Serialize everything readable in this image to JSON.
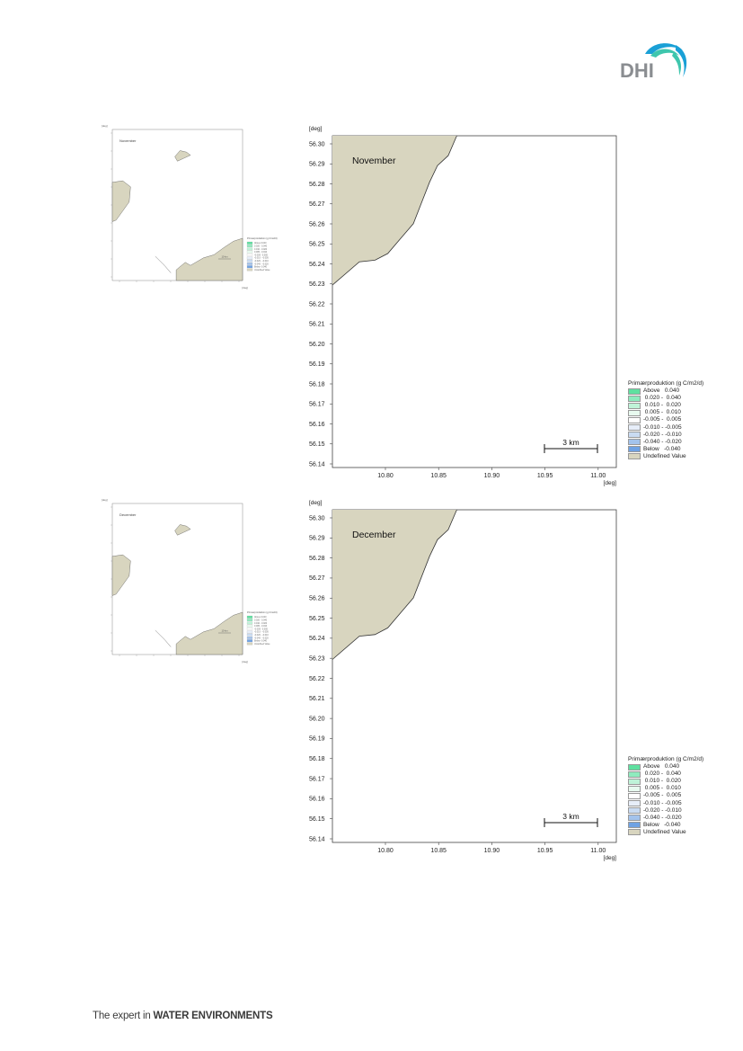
{
  "logo": {
    "text": "DHI"
  },
  "footer": {
    "prefix": "The expert in ",
    "bold": "WATER ENVIRONMENTS"
  },
  "units": {
    "deg": "[deg]"
  },
  "scale_bar_label": "3 km",
  "thumb_scale_bar_label": "10 km",
  "legend": {
    "title": "Primærproduktion (g C/m2/d)",
    "entries": [
      {
        "label": "Above   0.040",
        "color": "#5fe0a0"
      },
      {
        "label": " 0.020 -  0.040",
        "color": "#8eebbe"
      },
      {
        "label": " 0.010 -  0.020",
        "color": "#bff3d8"
      },
      {
        "label": " 0.005 -  0.010",
        "color": "#e8faef"
      },
      {
        "label": "-0.005 -  0.005",
        "color": "#ffffff"
      },
      {
        "label": "-0.010 - -0.005",
        "color": "#e7eef9"
      },
      {
        "label": "-0.020 - -0.010",
        "color": "#c9dbf2"
      },
      {
        "label": "-0.040 - -0.020",
        "color": "#a3c3ec"
      },
      {
        "label": "Below   -0.040",
        "color": "#6fa2e4"
      },
      {
        "label": "Undefined Value",
        "color": "#d8d5bf"
      }
    ]
  },
  "colors": {
    "land": "#d8d5bf",
    "coast": "#333333"
  },
  "maps": [
    {
      "month": "November",
      "x_ticks": [
        "10.80",
        "10.85",
        "10.90",
        "10.95",
        "11.00"
      ],
      "y_ticks": [
        "56.30",
        "56.29",
        "56.28",
        "56.27",
        "56.26",
        "56.25",
        "56.24",
        "56.23",
        "56.22",
        "56.21",
        "56.20",
        "56.19",
        "56.18",
        "56.17",
        "56.16",
        "56.15",
        "56.14"
      ]
    },
    {
      "month": "December",
      "x_ticks": [
        "10.80",
        "10.85",
        "10.90",
        "10.95",
        "11.00"
      ],
      "y_ticks": [
        "56.30",
        "56.29",
        "56.28",
        "56.27",
        "56.26",
        "56.25",
        "56.24",
        "56.23",
        "56.22",
        "56.21",
        "56.20",
        "56.19",
        "56.18",
        "56.17",
        "56.16",
        "56.15",
        "56.14"
      ]
    }
  ],
  "thumbnails": [
    {
      "month": "November"
    },
    {
      "month": "December"
    }
  ]
}
